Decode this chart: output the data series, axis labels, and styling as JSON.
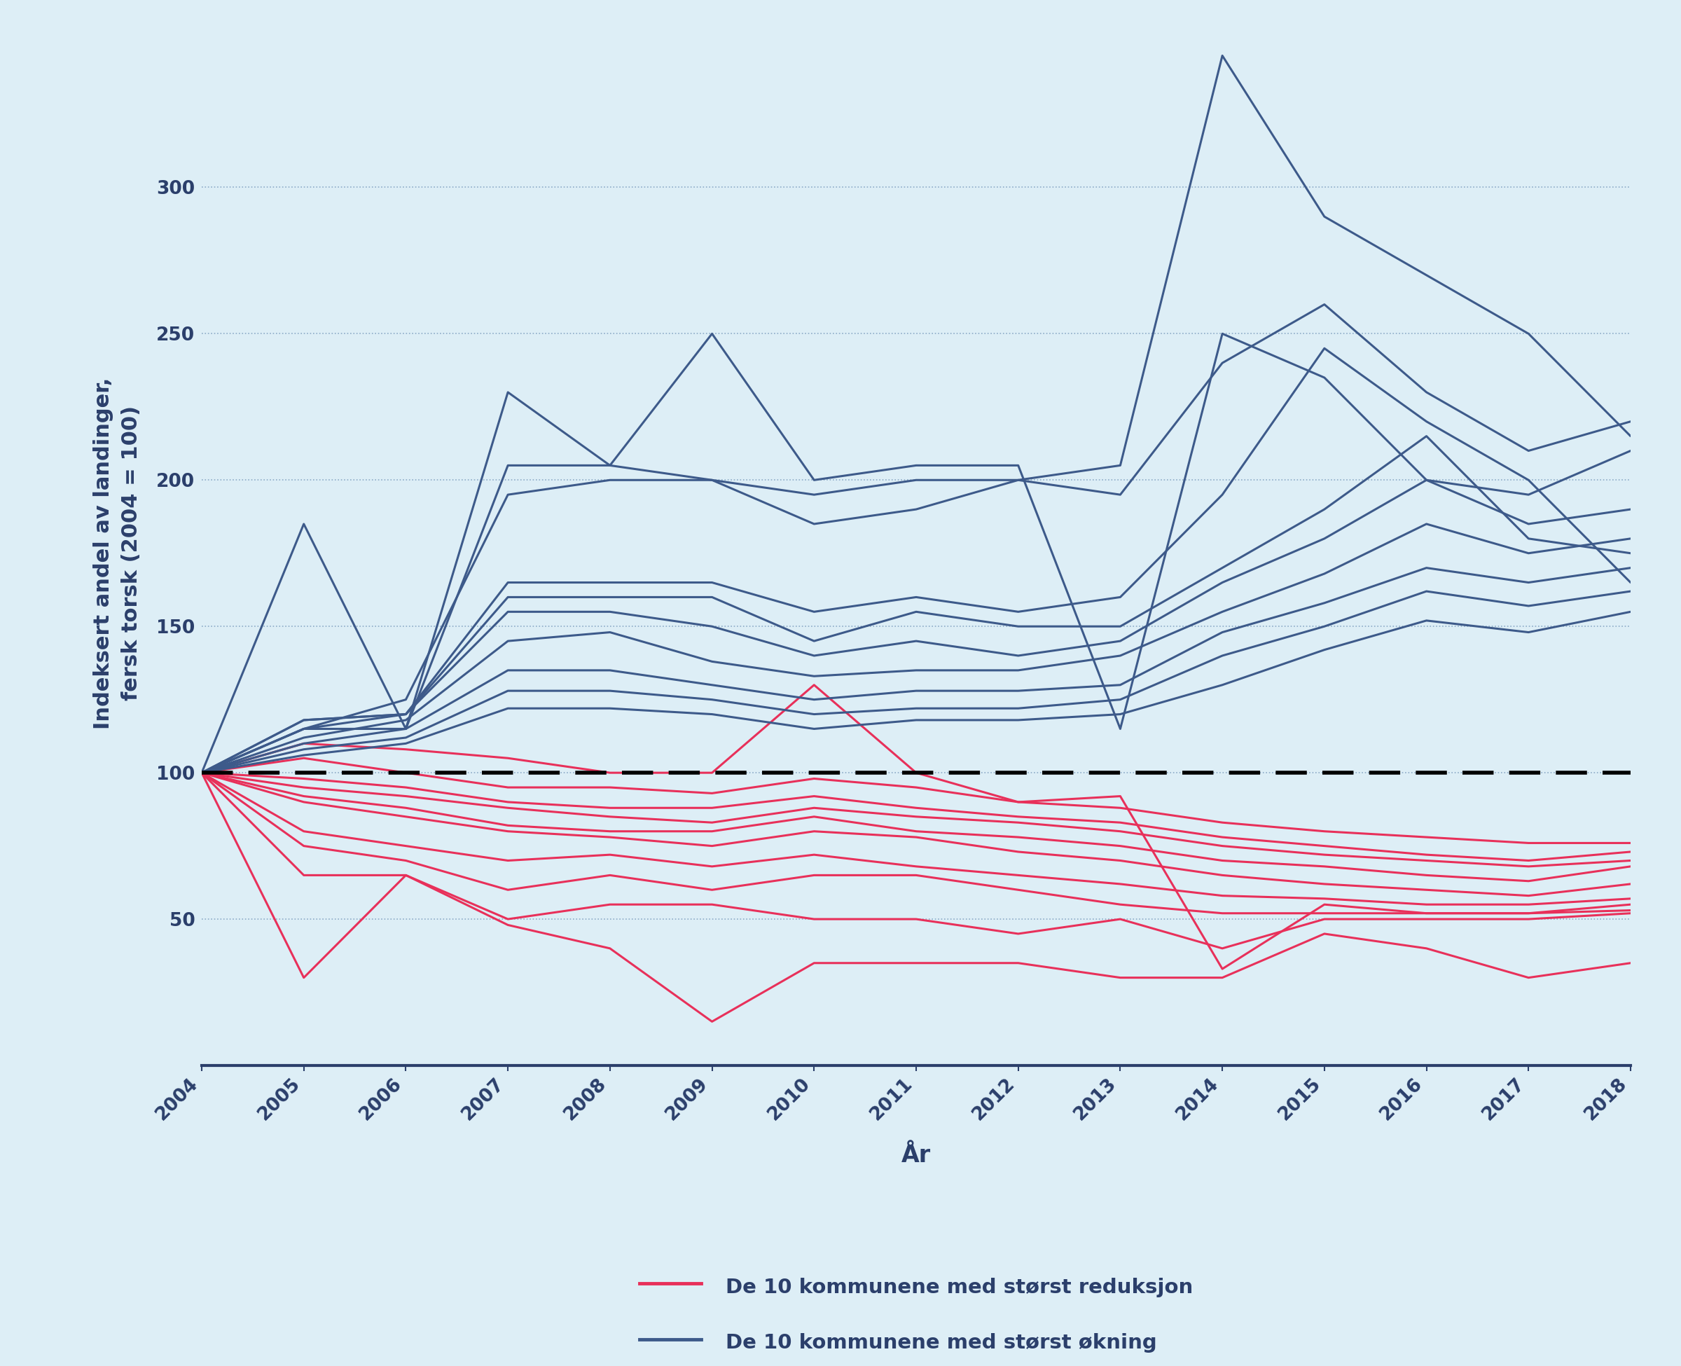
{
  "years": [
    2004,
    2005,
    2006,
    2007,
    2008,
    2009,
    2010,
    2011,
    2012,
    2013,
    2014,
    2015,
    2016,
    2017,
    2018
  ],
  "reduction_series": [
    [
      100,
      30,
      65,
      48,
      40,
      15,
      35,
      35,
      35,
      30,
      30,
      45,
      40,
      30,
      35
    ],
    [
      100,
      65,
      65,
      50,
      55,
      55,
      50,
      50,
      45,
      50,
      40,
      50,
      50,
      50,
      52
    ],
    [
      100,
      75,
      70,
      60,
      65,
      60,
      65,
      65,
      60,
      55,
      52,
      52,
      52,
      52,
      53
    ],
    [
      100,
      80,
      75,
      70,
      72,
      68,
      72,
      68,
      65,
      62,
      58,
      57,
      55,
      55,
      57
    ],
    [
      100,
      90,
      85,
      80,
      78,
      75,
      80,
      78,
      73,
      70,
      65,
      62,
      60,
      58,
      62
    ],
    [
      100,
      92,
      88,
      82,
      80,
      80,
      85,
      80,
      78,
      75,
      70,
      68,
      65,
      63,
      68
    ],
    [
      100,
      95,
      92,
      88,
      85,
      83,
      88,
      85,
      83,
      80,
      75,
      72,
      70,
      68,
      70
    ],
    [
      100,
      98,
      95,
      90,
      88,
      88,
      92,
      88,
      85,
      83,
      78,
      75,
      72,
      70,
      73
    ],
    [
      100,
      105,
      100,
      95,
      95,
      93,
      98,
      95,
      90,
      88,
      83,
      80,
      78,
      76,
      76
    ],
    [
      100,
      110,
      108,
      105,
      100,
      100,
      130,
      100,
      90,
      92,
      33,
      55,
      52,
      52,
      55
    ]
  ],
  "increase_series": [
    [
      100,
      185,
      115,
      230,
      205,
      250,
      200,
      205,
      205,
      115,
      250,
      235,
      200,
      195,
      210
    ],
    [
      100,
      115,
      115,
      205,
      205,
      200,
      195,
      200,
      200,
      205,
      345,
      290,
      270,
      250,
      215
    ],
    [
      100,
      115,
      125,
      195,
      200,
      200,
      185,
      190,
      200,
      195,
      240,
      260,
      230,
      210,
      220
    ],
    [
      100,
      118,
      120,
      165,
      165,
      165,
      155,
      160,
      155,
      160,
      195,
      245,
      220,
      200,
      165
    ],
    [
      100,
      118,
      120,
      160,
      160,
      160,
      145,
      155,
      150,
      150,
      170,
      190,
      215,
      180,
      175
    ],
    [
      100,
      115,
      120,
      155,
      155,
      150,
      140,
      145,
      140,
      145,
      165,
      180,
      200,
      185,
      190
    ],
    [
      100,
      112,
      118,
      145,
      148,
      138,
      133,
      135,
      135,
      140,
      155,
      168,
      185,
      175,
      180
    ],
    [
      100,
      110,
      115,
      135,
      135,
      130,
      125,
      128,
      128,
      130,
      148,
      158,
      170,
      165,
      170
    ],
    [
      100,
      108,
      112,
      128,
      128,
      125,
      120,
      122,
      122,
      125,
      140,
      150,
      162,
      157,
      162
    ],
    [
      100,
      106,
      110,
      122,
      122,
      120,
      115,
      118,
      118,
      120,
      130,
      142,
      152,
      148,
      155
    ]
  ],
  "background_color": "#ddeef6",
  "reduction_color": "#e8305a",
  "increase_color": "#3d5a8a",
  "dashed_line_color": "#000000",
  "ylabel": "Indeksert andel av landinger,\nfersk torsk (2004 = 100)",
  "xlabel": "År",
  "ylim": [
    0,
    350
  ],
  "yticks": [
    50,
    100,
    150,
    200,
    250,
    300
  ],
  "legend_reduction": "De 10 kommunene med størst reduksjon",
  "legend_increase": "De 10 kommunene med størst økning",
  "label_fontsize": 22,
  "tick_fontsize": 19,
  "legend_fontsize": 21,
  "line_width": 2.2,
  "spine_color": "#2b3f6b",
  "grid_color": "#7799bb",
  "axis_color": "#2b3f6b"
}
